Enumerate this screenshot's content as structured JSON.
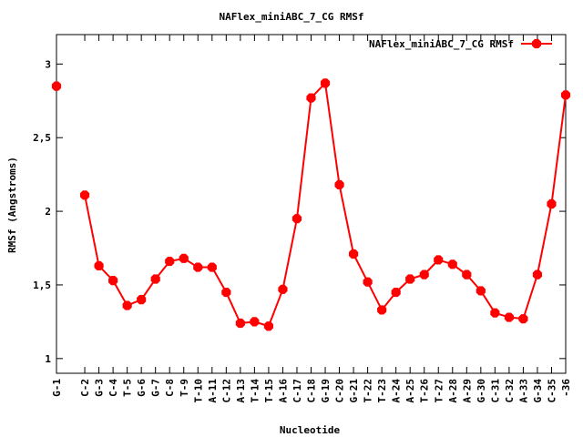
{
  "chart_data": {
    "type": "line",
    "title": "NAFlex_miniABC_7_CG RMSf",
    "xlabel": "Nucleotide",
    "ylabel": "RMSf (Angstroms)",
    "ylim": [
      0.9,
      3.2
    ],
    "yticks": [
      1,
      1.5,
      2,
      2.5,
      3
    ],
    "ytick_labels": [
      "1",
      "1,5",
      "2",
      "2,5",
      "3"
    ],
    "grid": false,
    "legend_position": "top-right",
    "x": [
      1,
      2,
      3,
      4,
      5,
      6,
      7,
      8,
      9,
      10,
      11,
      12,
      13,
      14,
      15,
      16,
      17,
      18,
      19,
      20,
      21,
      22,
      23,
      24,
      25,
      26,
      27,
      28,
      29,
      30,
      31,
      32,
      33,
      34,
      35,
      36
    ],
    "categories": [
      "G-1",
      "C-2",
      "G-3",
      "C-4",
      "T-5",
      "G-6",
      "G-7",
      "C-8",
      "T-9",
      "T-10",
      "A-11",
      "C-12",
      "A-13",
      "T-14",
      "T-15",
      "A-16",
      "C-17",
      "C-18",
      "G-19",
      "C-20",
      "G-21",
      "T-22",
      "T-23",
      "A-24",
      "A-25",
      "T-26",
      "T-27",
      "A-28",
      "A-29",
      "G-30",
      "C-31",
      "C-32",
      "A-33",
      "G-34",
      "C-35",
      "-36"
    ],
    "xtick_labels": [
      "G-1",
      "C-2",
      "G-3",
      "C-4",
      "T-5",
      "G-6",
      "G-7",
      "C-8",
      "T-9",
      "T-10",
      "A-11",
      "C-12",
      "A-13",
      "T-14",
      "T-15",
      "A-16",
      "C-17",
      "C-18",
      "G-19",
      "C-20",
      "G-21",
      "T-22",
      "T-23",
      "A-24",
      "A-25",
      "T-26",
      "T-27",
      "A-28",
      "A-29",
      "G-30",
      "C-31",
      "C-32",
      "A-33",
      "G-34",
      "C-35",
      "-36"
    ],
    "series": [
      {
        "name": "NAFlex_miniABC_7_CG RMSf",
        "color": "#ff0000",
        "segments": [
          {
            "x": [
              1
            ],
            "values": [
              2.85
            ]
          },
          {
            "x": [
              3,
              4,
              5,
              6,
              7,
              8,
              9,
              10,
              11,
              12,
              13,
              14,
              15,
              16,
              17,
              18,
              19,
              20,
              21,
              22,
              23,
              24,
              25,
              26,
              27,
              28,
              29,
              30,
              31,
              32,
              33,
              34,
              35,
              36,
              37
            ],
            "values": [
              2.11,
              1.63,
              1.53,
              1.36,
              1.4,
              1.54,
              1.66,
              1.68,
              1.62,
              1.62,
              1.45,
              1.24,
              1.25,
              1.22,
              1.47,
              1.95,
              2.77,
              2.87,
              2.18,
              1.71,
              1.52,
              1.33,
              1.45,
              1.54,
              1.57,
              1.67,
              1.64,
              1.57,
              1.46,
              1.31,
              1.28,
              1.27,
              1.57,
              2.05,
              2.79
            ]
          }
        ]
      }
    ]
  }
}
